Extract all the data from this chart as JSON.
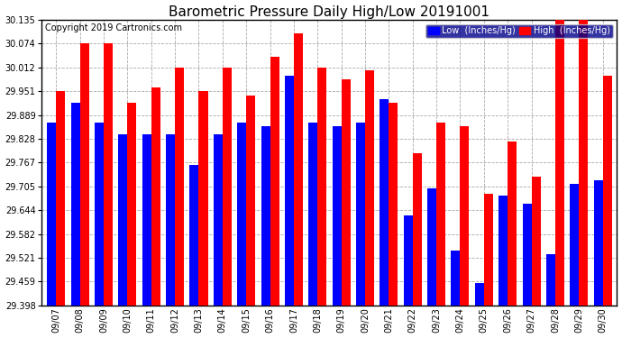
{
  "title": "Barometric Pressure Daily High/Low 20191001",
  "copyright": "Copyright 2019 Cartronics.com",
  "dates": [
    "09/07",
    "09/08",
    "09/09",
    "09/10",
    "09/11",
    "09/12",
    "09/13",
    "09/14",
    "09/15",
    "09/16",
    "09/17",
    "09/18",
    "09/19",
    "09/20",
    "09/21",
    "09/22",
    "09/23",
    "09/24",
    "09/25",
    "09/26",
    "09/27",
    "09/28",
    "09/29",
    "09/30"
  ],
  "low": [
    29.87,
    29.92,
    29.87,
    29.84,
    29.84,
    29.84,
    29.76,
    29.84,
    29.87,
    29.86,
    29.99,
    29.87,
    29.86,
    29.87,
    29.93,
    29.63,
    29.7,
    29.54,
    29.455,
    29.68,
    29.66,
    29.53,
    29.71,
    29.72
  ],
  "high": [
    29.95,
    30.074,
    30.074,
    29.92,
    29.96,
    30.01,
    29.95,
    30.01,
    29.94,
    30.04,
    30.1,
    30.01,
    29.98,
    30.005,
    29.92,
    29.79,
    29.87,
    29.86,
    29.685,
    29.82,
    29.73,
    30.135,
    30.135,
    29.99
  ],
  "ymin": 29.398,
  "ymax": 30.135,
  "yticks": [
    29.398,
    29.459,
    29.521,
    29.582,
    29.644,
    29.705,
    29.767,
    29.828,
    29.889,
    29.951,
    30.012,
    30.074,
    30.135
  ],
  "bar_width": 0.38,
  "low_color": "#0000ff",
  "high_color": "#ff0000",
  "bg_color": "#ffffff",
  "grid_color": "#aaaaaa",
  "legend_low_label": "Low  (Inches/Hg)",
  "legend_high_label": "High  (Inches/Hg)",
  "title_fontsize": 11,
  "copyright_fontsize": 7,
  "tick_fontsize": 7,
  "border_color": "#000000"
}
